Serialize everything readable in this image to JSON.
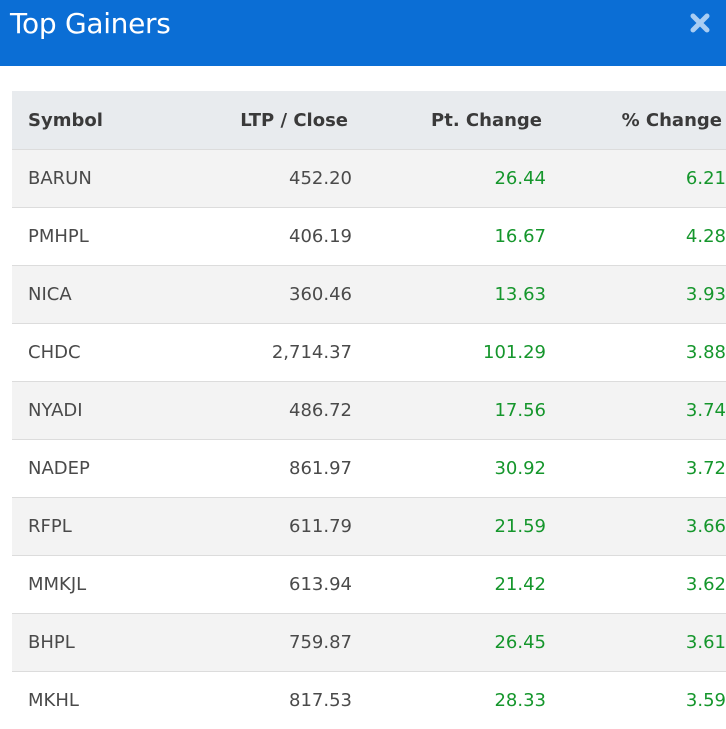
{
  "header": {
    "title": "Top Gainers",
    "close_icon": "close-icon",
    "background": "#0b6ed5"
  },
  "table": {
    "columns": [
      "Symbol",
      "LTP / Close",
      "Pt. Change",
      "% Change"
    ],
    "positive_color": "#15962c",
    "rows": [
      {
        "symbol": "BARUN",
        "ltp": "452.20",
        "pt": "26.44",
        "pct": "6.21"
      },
      {
        "symbol": "PMHPL",
        "ltp": "406.19",
        "pt": "16.67",
        "pct": "4.28"
      },
      {
        "symbol": "NICA",
        "ltp": "360.46",
        "pt": "13.63",
        "pct": "3.93"
      },
      {
        "symbol": "CHDC",
        "ltp": "2,714.37",
        "pt": "101.29",
        "pct": "3.88"
      },
      {
        "symbol": "NYADI",
        "ltp": "486.72",
        "pt": "17.56",
        "pct": "3.74"
      },
      {
        "symbol": "NADEP",
        "ltp": "861.97",
        "pt": "30.92",
        "pct": "3.72"
      },
      {
        "symbol": "RFPL",
        "ltp": "611.79",
        "pt": "21.59",
        "pct": "3.66"
      },
      {
        "symbol": "MMKJL",
        "ltp": "613.94",
        "pt": "21.42",
        "pct": "3.62"
      },
      {
        "symbol": "BHPL",
        "ltp": "759.87",
        "pt": "26.45",
        "pct": "3.61"
      },
      {
        "symbol": "MKHL",
        "ltp": "817.53",
        "pt": "28.33",
        "pct": "3.59"
      }
    ]
  }
}
